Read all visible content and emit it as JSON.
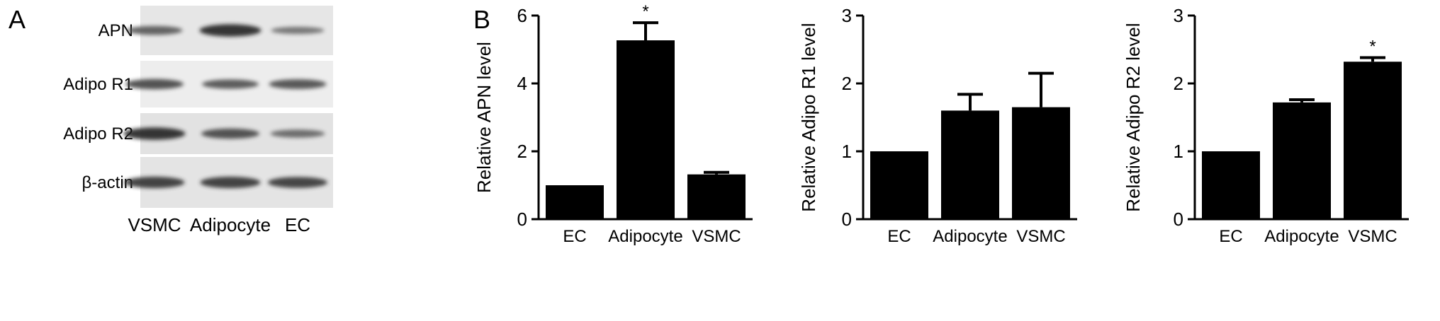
{
  "panel_a": {
    "letter": "A",
    "rows": [
      {
        "label": "APN",
        "intensity": [
          0.55,
          0.95,
          0.35
        ]
      },
      {
        "label": "Adipo R1",
        "intensity": [
          0.7,
          0.6,
          0.65
        ]
      },
      {
        "label": "Adipo R2",
        "intensity": [
          0.95,
          0.7,
          0.45
        ]
      },
      {
        "label": "β-actin",
        "intensity": [
          0.85,
          0.85,
          0.8
        ]
      }
    ],
    "lanes": [
      "VSMC",
      "Adipocyte",
      "EC"
    ]
  },
  "panel_b": {
    "letter": "B"
  },
  "chart_data": [
    {
      "type": "bar",
      "categories": [
        "EC",
        "Adipocyte",
        "VSMC"
      ],
      "values": [
        1.0,
        5.27,
        1.32
      ],
      "errors": [
        0,
        0.52,
        0.06
      ],
      "significance": [
        "",
        "*",
        ""
      ],
      "ylabel": "Relative APN level",
      "ylim": [
        0,
        6
      ],
      "yticks": [
        0,
        2,
        4,
        6
      ],
      "grid": false
    },
    {
      "type": "bar",
      "categories": [
        "EC",
        "Adipocyte",
        "VSMC"
      ],
      "values": [
        1.0,
        1.6,
        1.65
      ],
      "errors": [
        0,
        0.24,
        0.5
      ],
      "significance": [
        "",
        "",
        ""
      ],
      "ylabel": "Relative Adipo R1 level",
      "ylim": [
        0,
        3
      ],
      "yticks": [
        0,
        1,
        2,
        3
      ],
      "grid": false
    },
    {
      "type": "bar",
      "categories": [
        "EC",
        "Adipocyte",
        "VSMC"
      ],
      "values": [
        1.0,
        1.72,
        2.32
      ],
      "errors": [
        0,
        0.04,
        0.06
      ],
      "significance": [
        "",
        "",
        "*"
      ],
      "ylabel": "Relative Adipo R2 level",
      "ylim": [
        0,
        3
      ],
      "yticks": [
        0,
        1,
        2,
        3
      ],
      "grid": false
    }
  ]
}
